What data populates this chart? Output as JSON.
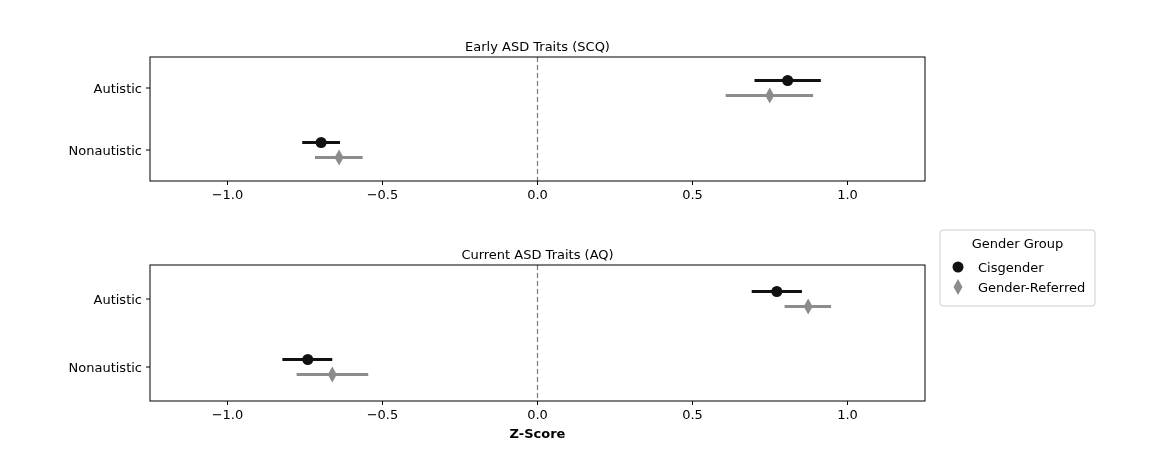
{
  "chart_data": [
    {
      "type": "scatter",
      "title": "Early ASD Traits (SCQ)",
      "orientation": "horizontal",
      "categories": [
        "Autistic",
        "Nonautistic"
      ],
      "series": [
        {
          "name": "Cisgender",
          "color": "#111111",
          "marker": "circle",
          "values": [
            0.807,
            -0.698
          ],
          "errors": [
            [
              0.7,
              0.914
            ],
            [
              -0.759,
              -0.637
            ]
          ]
        },
        {
          "name": "Gender-Referred",
          "color": "#8c8c8c",
          "marker": "diamond",
          "values": [
            0.749,
            -0.64
          ],
          "errors": [
            [
              0.607,
              0.889
            ],
            [
              -0.718,
              -0.564
            ]
          ]
        }
      ],
      "xlim": [
        -1.25,
        1.25
      ],
      "xticks": [
        {
          "value": -1,
          "label": "−1.0"
        },
        {
          "value": -0.5,
          "label": "−0.5"
        },
        {
          "value": 0,
          "label": "0.0"
        },
        {
          "value": 0.5,
          "label": "0.5"
        },
        {
          "value": 1,
          "label": "1.0"
        }
      ],
      "ref_lines": [
        {
          "axis": "x",
          "value": 0,
          "color": "#777777",
          "line_style": "dashed"
        }
      ],
      "legend": "right",
      "legend_title": "Gender Group"
    },
    {
      "type": "scatter",
      "title": "Current ASD Traits (AQ)",
      "xlabel": "Z-Score",
      "orientation": "horizontal",
      "categories": [
        "Autistic",
        "Nonautistic"
      ],
      "series": [
        {
          "color": "#111111",
          "marker": "circle",
          "values": [
            0.772,
            -0.741
          ],
          "errors": [
            [
              0.691,
              0.853
            ],
            [
              -0.823,
              -0.662
            ]
          ]
        },
        {
          "color": "#8c8c8c",
          "marker": "diamond",
          "values": [
            0.873,
            -0.662
          ],
          "errors": [
            [
              0.797,
              0.947
            ],
            [
              -0.777,
              -0.546
            ]
          ]
        }
      ],
      "xlim": [
        -1.25,
        1.25
      ],
      "xticks": [
        {
          "value": -1,
          "label": "−1.0"
        },
        {
          "value": -0.5,
          "label": "−0.5"
        },
        {
          "value": 0,
          "label": "0.0"
        },
        {
          "value": 0.5,
          "label": "0.5"
        },
        {
          "value": 1,
          "label": "1.0"
        }
      ],
      "ref_lines": [
        {
          "axis": "x",
          "value": 0,
          "color": "#777777",
          "line_style": "dashed"
        }
      ]
    }
  ]
}
